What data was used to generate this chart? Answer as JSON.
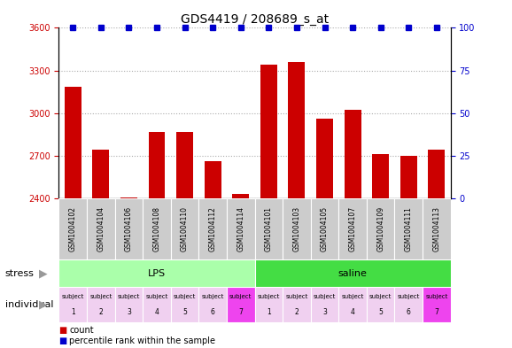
{
  "title": "GDS4419 / 208689_s_at",
  "samples": [
    "GSM1004102",
    "GSM1004104",
    "GSM1004106",
    "GSM1004108",
    "GSM1004110",
    "GSM1004112",
    "GSM1004114",
    "GSM1004101",
    "GSM1004103",
    "GSM1004105",
    "GSM1004107",
    "GSM1004109",
    "GSM1004111",
    "GSM1004113"
  ],
  "counts": [
    3185,
    2740,
    2405,
    2870,
    2870,
    2660,
    2430,
    3340,
    3360,
    2960,
    3025,
    2710,
    2700,
    2740
  ],
  "bar_color": "#cc0000",
  "percentile_color": "#0000cc",
  "ylim_left": [
    2400,
    3600
  ],
  "ylim_right": [
    0,
    100
  ],
  "yticks_left": [
    2400,
    2700,
    3000,
    3300,
    3600
  ],
  "yticks_right": [
    0,
    25,
    50,
    75,
    100
  ],
  "stress_groups": [
    {
      "label": "LPS",
      "start": 0,
      "end": 7,
      "color": "#aaffaa"
    },
    {
      "label": "saline",
      "start": 7,
      "end": 14,
      "color": "#44dd44"
    }
  ],
  "individual_colors": [
    "#f0d0f0",
    "#f0d0f0",
    "#f0d0f0",
    "#f0d0f0",
    "#f0d0f0",
    "#f0d0f0",
    "#ee44ee",
    "#f0d0f0",
    "#f0d0f0",
    "#f0d0f0",
    "#f0d0f0",
    "#f0d0f0",
    "#f0d0f0",
    "#ee44ee"
  ],
  "individual_labels": [
    "subject\n1",
    "subject\n2",
    "subject\n3",
    "subject\n4",
    "subject\n5",
    "subject\n6",
    "subject\n7",
    "subject\n1",
    "subject\n2",
    "subject\n3",
    "subject\n4",
    "subject\n5",
    "subject\n6",
    "subject\n7"
  ],
  "stress_row_label": "stress",
  "individual_row_label": "individual",
  "legend_count_label": "count",
  "legend_percentile_label": "percentile rank within the sample",
  "title_fontsize": 10,
  "tick_fontsize": 7,
  "label_fontsize": 8,
  "sample_fontsize": 5.5
}
